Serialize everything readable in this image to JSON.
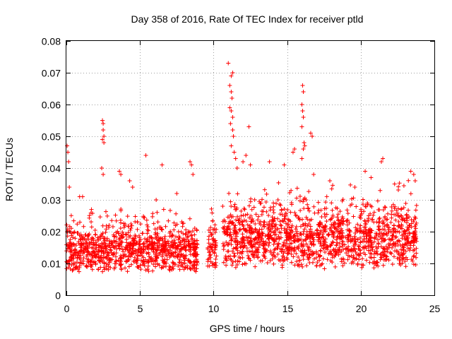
{
  "chart_data": {
    "type": "scatter",
    "title": "Day 358 of 2016, Rate Of TEC Index for receiver ptld",
    "xlabel": "GPS time / hours",
    "ylabel": "ROTI / TECUs",
    "xlim": [
      0,
      25
    ],
    "ylim": [
      0,
      0.08
    ],
    "grid": true,
    "marker": "plus",
    "x_ticks": [
      0,
      5,
      10,
      15,
      20,
      25
    ],
    "x_tick_labels": [
      "0",
      "5",
      "10",
      "15",
      "20",
      "25"
    ],
    "y_ticks": [
      0,
      0.01,
      0.02,
      0.03,
      0.04,
      0.05,
      0.06,
      0.07,
      0.08
    ],
    "y_tick_labels": [
      "0",
      "0.01",
      "0.02",
      "0.03",
      "0.04",
      "0.05",
      "0.06",
      "0.07",
      "0.08"
    ],
    "series": [
      {
        "name": "ROTI",
        "color": "#ff0000",
        "segments": [
          {
            "x_start": 0.0,
            "x_end": 8.9,
            "base": 0.01,
            "spread": 0.014
          },
          {
            "x_start": 9.6,
            "x_end": 10.2,
            "base": 0.012,
            "spread": 0.012
          },
          {
            "x_start": 10.6,
            "x_end": 23.8,
            "base": 0.013,
            "spread": 0.018
          }
        ],
        "peaks": [
          {
            "x": 0.05,
            "y": 0.047
          },
          {
            "x": 0.1,
            "y": 0.045
          },
          {
            "x": 0.15,
            "y": 0.042
          },
          {
            "x": 0.2,
            "y": 0.034
          },
          {
            "x": 0.9,
            "y": 0.031
          },
          {
            "x": 1.1,
            "y": 0.031
          },
          {
            "x": 2.45,
            "y": 0.055
          },
          {
            "x": 2.5,
            "y": 0.054
          },
          {
            "x": 2.5,
            "y": 0.052
          },
          {
            "x": 2.55,
            "y": 0.05
          },
          {
            "x": 2.45,
            "y": 0.049
          },
          {
            "x": 2.55,
            "y": 0.048
          },
          {
            "x": 2.4,
            "y": 0.04
          },
          {
            "x": 2.5,
            "y": 0.038
          },
          {
            "x": 3.6,
            "y": 0.039
          },
          {
            "x": 3.7,
            "y": 0.038
          },
          {
            "x": 4.3,
            "y": 0.036
          },
          {
            "x": 4.5,
            "y": 0.034
          },
          {
            "x": 5.4,
            "y": 0.044
          },
          {
            "x": 6.1,
            "y": 0.03
          },
          {
            "x": 6.5,
            "y": 0.041
          },
          {
            "x": 7.5,
            "y": 0.032
          },
          {
            "x": 8.4,
            "y": 0.042
          },
          {
            "x": 8.5,
            "y": 0.041
          },
          {
            "x": 8.6,
            "y": 0.038
          },
          {
            "x": 11.0,
            "y": 0.073
          },
          {
            "x": 11.2,
            "y": 0.069
          },
          {
            "x": 11.3,
            "y": 0.07
          },
          {
            "x": 11.1,
            "y": 0.066
          },
          {
            "x": 11.2,
            "y": 0.064
          },
          {
            "x": 11.25,
            "y": 0.062
          },
          {
            "x": 11.1,
            "y": 0.059
          },
          {
            "x": 11.2,
            "y": 0.058
          },
          {
            "x": 11.3,
            "y": 0.056
          },
          {
            "x": 11.15,
            "y": 0.054
          },
          {
            "x": 11.3,
            "y": 0.052
          },
          {
            "x": 11.35,
            "y": 0.05
          },
          {
            "x": 11.2,
            "y": 0.047
          },
          {
            "x": 11.4,
            "y": 0.045
          },
          {
            "x": 11.5,
            "y": 0.043
          },
          {
            "x": 11.6,
            "y": 0.04
          },
          {
            "x": 12.4,
            "y": 0.053
          },
          {
            "x": 12.2,
            "y": 0.044
          },
          {
            "x": 12.0,
            "y": 0.042
          },
          {
            "x": 12.5,
            "y": 0.041
          },
          {
            "x": 13.8,
            "y": 0.042
          },
          {
            "x": 14.8,
            "y": 0.041
          },
          {
            "x": 15.4,
            "y": 0.045
          },
          {
            "x": 15.5,
            "y": 0.046
          },
          {
            "x": 16.05,
            "y": 0.066
          },
          {
            "x": 16.1,
            "y": 0.064
          },
          {
            "x": 16.0,
            "y": 0.06
          },
          {
            "x": 16.05,
            "y": 0.058
          },
          {
            "x": 16.1,
            "y": 0.056
          },
          {
            "x": 16.0,
            "y": 0.053
          },
          {
            "x": 16.15,
            "y": 0.048
          },
          {
            "x": 16.2,
            "y": 0.047
          },
          {
            "x": 16.1,
            "y": 0.046
          },
          {
            "x": 16.6,
            "y": 0.051
          },
          {
            "x": 16.7,
            "y": 0.05
          },
          {
            "x": 16.0,
            "y": 0.043
          },
          {
            "x": 16.8,
            "y": 0.038
          },
          {
            "x": 17.9,
            "y": 0.036
          },
          {
            "x": 19.6,
            "y": 0.034
          },
          {
            "x": 20.3,
            "y": 0.039
          },
          {
            "x": 20.7,
            "y": 0.037
          },
          {
            "x": 21.5,
            "y": 0.043
          },
          {
            "x": 21.4,
            "y": 0.042
          },
          {
            "x": 22.3,
            "y": 0.035
          },
          {
            "x": 23.4,
            "y": 0.039
          },
          {
            "x": 23.6,
            "y": 0.038
          },
          {
            "x": 23.7,
            "y": 0.036
          }
        ]
      }
    ]
  }
}
